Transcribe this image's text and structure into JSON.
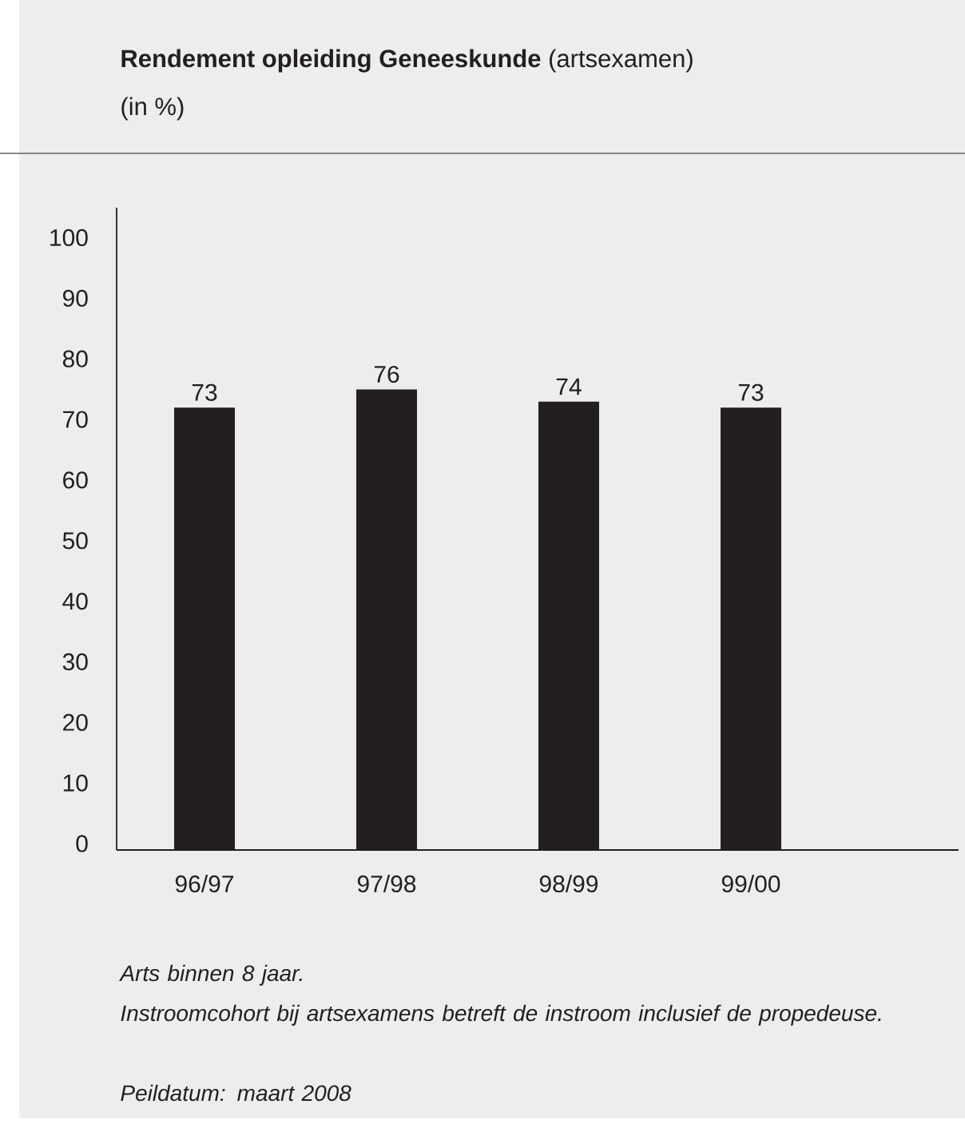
{
  "chart_data": {
    "type": "bar",
    "title": "**Rendement opleiding Geneeskunde** (artsexamen)",
    "subtitle": "(in %)",
    "categories": [
      "96/97",
      "97/98",
      "98/99",
      "99/00"
    ],
    "values": [
      73,
      76,
      74,
      73
    ],
    "color": "#231f20",
    "ylim": [
      0,
      106
    ],
    "yticks": [
      0,
      10,
      20,
      30,
      40,
      50,
      60,
      70,
      80,
      90,
      100
    ],
    "data_labels": true,
    "annotations": [
      "Arts binnen 8 jaar.",
      "Instroomcohort bij artsexamens betreft de instroom inclusief de propedeuse.",
      "Peildatum: maart 2008"
    ]
  }
}
